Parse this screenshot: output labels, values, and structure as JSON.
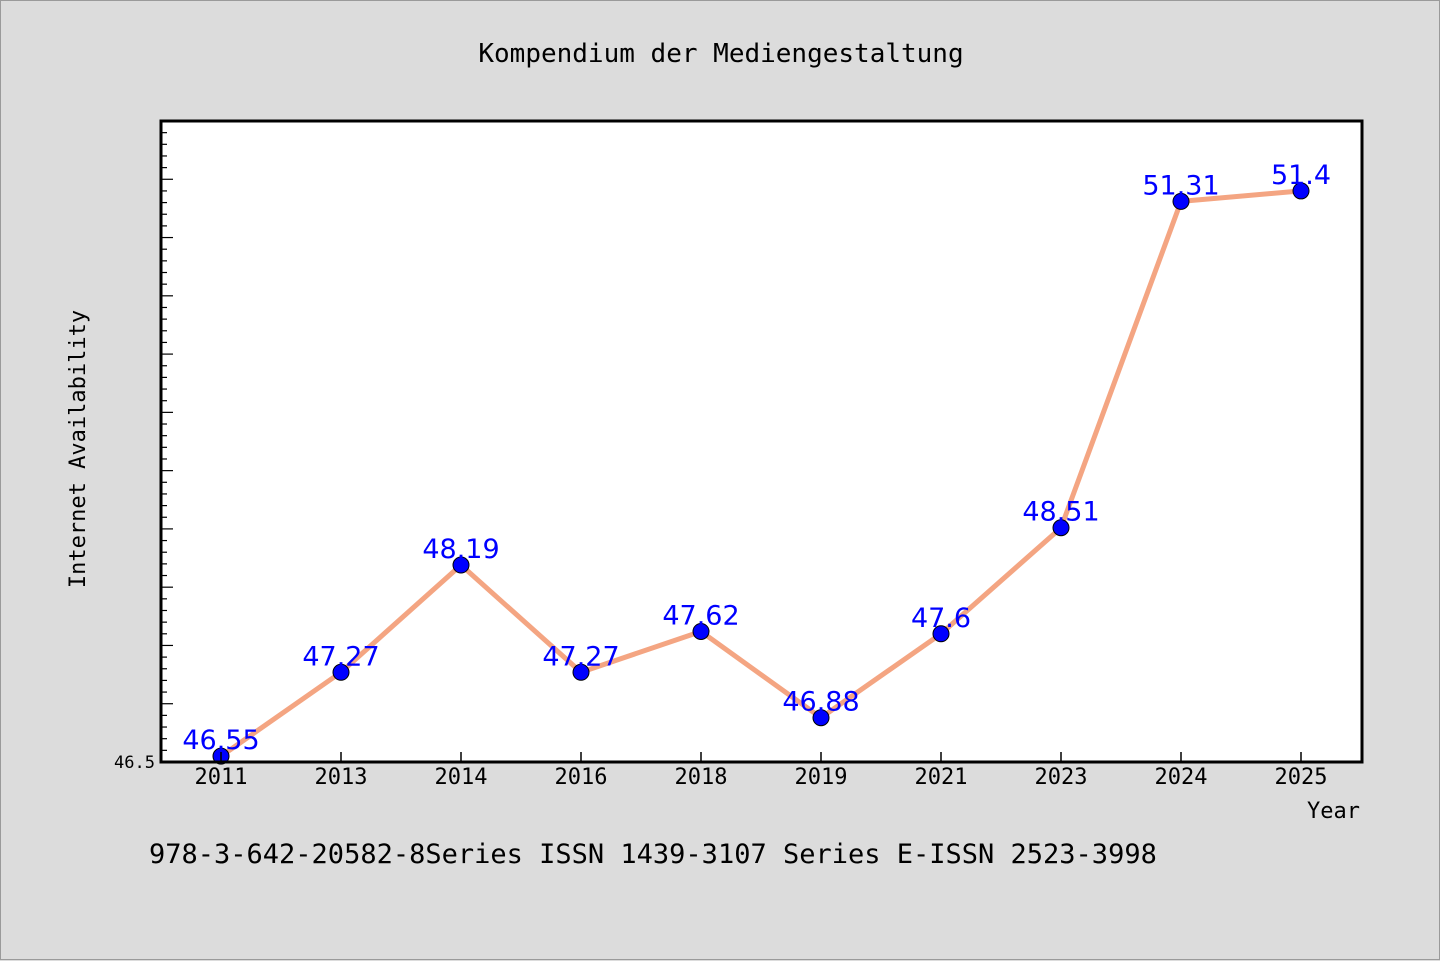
{
  "chart_data": {
    "type": "line",
    "title": "Kompendium der Mediengestaltung",
    "xlabel": "Year",
    "ylabel": "Internet Availability",
    "categories": [
      "2011",
      "2013",
      "2014",
      "2016",
      "2018",
      "2019",
      "2021",
      "2023",
      "2024",
      "2025"
    ],
    "series": [
      {
        "values": [
          46.55,
          47.27,
          48.19,
          47.27,
          47.62,
          46.88,
          47.6,
          48.51,
          51.31,
          51.4
        ],
        "labels": [
          "46.55",
          "47.27",
          "48.19",
          "47.27",
          "47.62",
          "46.88",
          "47.6",
          "48.51",
          "51.31",
          "51.4"
        ]
      }
    ],
    "ylim": [
      46.5,
      52.0
    ],
    "yticks": [
      "46.5"
    ],
    "grid": false,
    "legend": "none",
    "line_color": "#f4a582",
    "marker_color": "#0000ff",
    "label_color": "#0000ff"
  },
  "footer": "978-3-642-20582-8Series ISSN 1439-3107 Series E-ISSN 2523-3998"
}
